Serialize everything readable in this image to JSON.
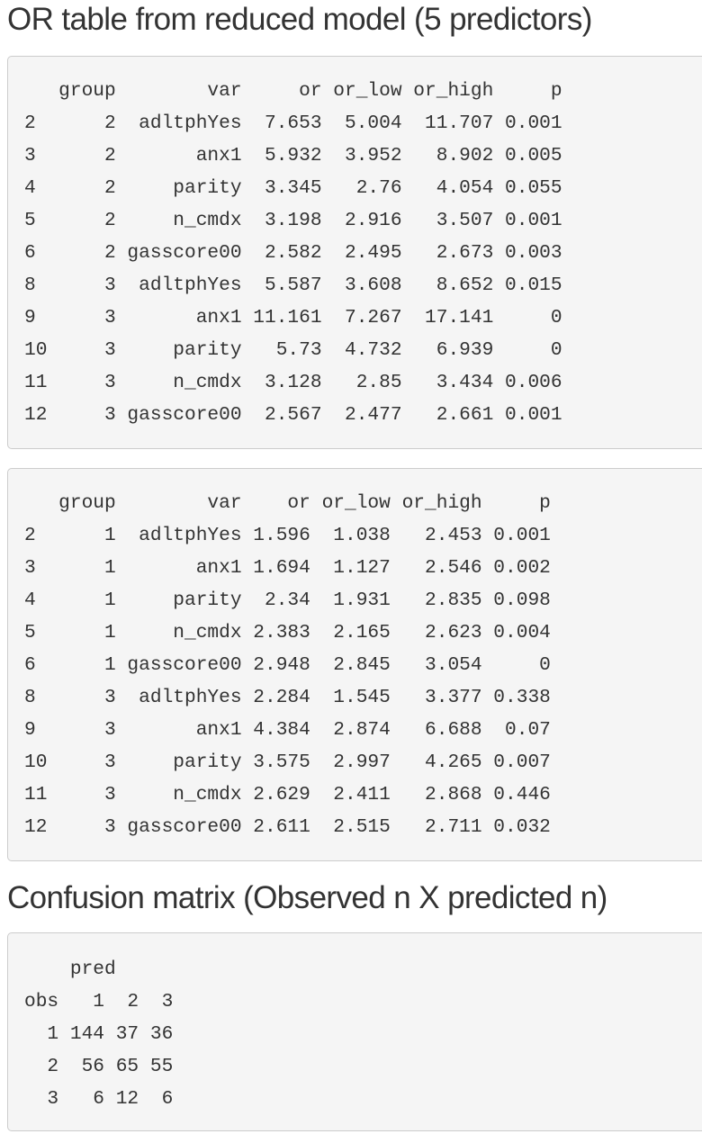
{
  "headings": {
    "or_table": "OR table from reduced model (5 predictors)",
    "confusion": "Confusion matrix (Observed n X predicted n)"
  },
  "or_table_1": {
    "columns": [
      "group",
      "var",
      "or",
      "or_low",
      "or_high",
      "p"
    ],
    "rows": [
      {
        "row": "2",
        "group": "2",
        "var": "adltphYes",
        "or": "7.653",
        "or_low": "5.004",
        "or_high": "11.707",
        "p": "0.001"
      },
      {
        "row": "3",
        "group": "2",
        "var": "anx1",
        "or": "5.932",
        "or_low": "3.952",
        "or_high": "8.902",
        "p": "0.005"
      },
      {
        "row": "4",
        "group": "2",
        "var": "parity",
        "or": "3.345",
        "or_low": "2.76",
        "or_high": "4.054",
        "p": "0.055"
      },
      {
        "row": "5",
        "group": "2",
        "var": "n_cmdx",
        "or": "3.198",
        "or_low": "2.916",
        "or_high": "3.507",
        "p": "0.001"
      },
      {
        "row": "6",
        "group": "2",
        "var": "gasscore00",
        "or": "2.582",
        "or_low": "2.495",
        "or_high": "2.673",
        "p": "0.003"
      },
      {
        "row": "8",
        "group": "3",
        "var": "adltphYes",
        "or": "5.587",
        "or_low": "3.608",
        "or_high": "8.652",
        "p": "0.015"
      },
      {
        "row": "9",
        "group": "3",
        "var": "anx1",
        "or": "11.161",
        "or_low": "7.267",
        "or_high": "17.141",
        "p": "0"
      },
      {
        "row": "10",
        "group": "3",
        "var": "parity",
        "or": "5.73",
        "or_low": "4.732",
        "or_high": "6.939",
        "p": "0"
      },
      {
        "row": "11",
        "group": "3",
        "var": "n_cmdx",
        "or": "3.128",
        "or_low": "2.85",
        "or_high": "3.434",
        "p": "0.006"
      },
      {
        "row": "12",
        "group": "3",
        "var": "gasscore00",
        "or": "2.567",
        "or_low": "2.477",
        "or_high": "2.661",
        "p": "0.001"
      }
    ]
  },
  "or_table_2": {
    "columns": [
      "group",
      "var",
      "or",
      "or_low",
      "or_high",
      "p"
    ],
    "rows": [
      {
        "row": "2",
        "group": "1",
        "var": "adltphYes",
        "or": "1.596",
        "or_low": "1.038",
        "or_high": "2.453",
        "p": "0.001"
      },
      {
        "row": "3",
        "group": "1",
        "var": "anx1",
        "or": "1.694",
        "or_low": "1.127",
        "or_high": "2.546",
        "p": "0.002"
      },
      {
        "row": "4",
        "group": "1",
        "var": "parity",
        "or": "2.34",
        "or_low": "1.931",
        "or_high": "2.835",
        "p": "0.098"
      },
      {
        "row": "5",
        "group": "1",
        "var": "n_cmdx",
        "or": "2.383",
        "or_low": "2.165",
        "or_high": "2.623",
        "p": "0.004"
      },
      {
        "row": "6",
        "group": "1",
        "var": "gasscore00",
        "or": "2.948",
        "or_low": "2.845",
        "or_high": "3.054",
        "p": "0"
      },
      {
        "row": "8",
        "group": "3",
        "var": "adltphYes",
        "or": "2.284",
        "or_low": "1.545",
        "or_high": "3.377",
        "p": "0.338"
      },
      {
        "row": "9",
        "group": "3",
        "var": "anx1",
        "or": "4.384",
        "or_low": "2.874",
        "or_high": "6.688",
        "p": "0.07"
      },
      {
        "row": "10",
        "group": "3",
        "var": "parity",
        "or": "3.575",
        "or_low": "2.997",
        "or_high": "4.265",
        "p": "0.007"
      },
      {
        "row": "11",
        "group": "3",
        "var": "n_cmdx",
        "or": "2.629",
        "or_low": "2.411",
        "or_high": "2.868",
        "p": "0.446"
      },
      {
        "row": "12",
        "group": "3",
        "var": "gasscore00",
        "or": "2.611",
        "or_low": "2.515",
        "or_high": "2.711",
        "p": "0.032"
      }
    ]
  },
  "confusion_matrix": {
    "col_header": "pred",
    "row_header": "obs",
    "col_labels": [
      "1",
      "2",
      "3"
    ],
    "rows": [
      {
        "label": "1",
        "values": [
          "144",
          "37",
          "36"
        ]
      },
      {
        "label": "2",
        "values": [
          "56",
          "65",
          "55"
        ]
      },
      {
        "label": "3",
        "values": [
          "6",
          "12",
          "6"
        ]
      }
    ]
  }
}
